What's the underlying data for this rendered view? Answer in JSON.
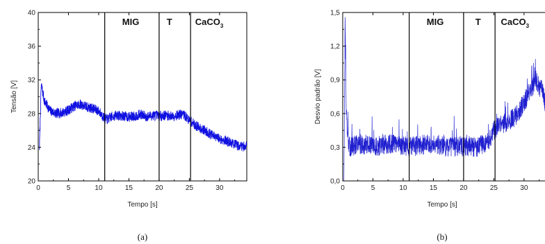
{
  "chart_data": [
    {
      "type": "line",
      "caption": "(a)",
      "xlabel": "Tempo [s]",
      "ylabel": "Tensão [V]",
      "xlim": [
        0,
        34.5
      ],
      "ylim": [
        20,
        40
      ],
      "xticks": [
        0,
        5,
        10,
        15,
        20,
        25,
        30
      ],
      "yticks": [
        20,
        24,
        28,
        32,
        36,
        40
      ],
      "xtick_labels": [
        "0",
        "5",
        "10",
        "15",
        "20",
        "25",
        "30"
      ],
      "ytick_labels": [
        "20",
        "24",
        "28",
        "32",
        "36",
        "40"
      ],
      "grid": false,
      "line_color": "#1010e0",
      "phase_lines": [
        11,
        20,
        25.2
      ],
      "phase_labels": [
        {
          "text": "MIG",
          "x": 15.3,
          "sub": ""
        },
        {
          "text": "T",
          "x": 21.7,
          "sub": ""
        },
        {
          "text": "CaCO",
          "x": 28.3,
          "sub": "3"
        }
      ],
      "series": [
        {
          "x": [
            0.2,
            0.5,
            1,
            2,
            3,
            4,
            5,
            6,
            7,
            8,
            9,
            10,
            11,
            11.5,
            12,
            13,
            14,
            15,
            16,
            17,
            18,
            19,
            20,
            21,
            22,
            23,
            24,
            25,
            26,
            27,
            28,
            29,
            30,
            31,
            32,
            33,
            34,
            34.5
          ],
          "y": [
            24,
            31.5,
            29.5,
            28.3,
            28.0,
            28.1,
            28.4,
            28.9,
            29.1,
            28.8,
            28.6,
            28.3,
            27.4,
            27.3,
            27.6,
            27.8,
            27.7,
            27.6,
            27.7,
            27.9,
            27.6,
            27.8,
            27.7,
            27.8,
            27.7,
            27.8,
            27.9,
            27.2,
            26.6,
            26.2,
            25.8,
            25.3,
            25.0,
            24.8,
            24.5,
            24.2,
            24.1,
            24.3
          ],
          "noise": 0.6
        }
      ]
    },
    {
      "type": "line",
      "caption": "(b)",
      "xlabel": "Tempo [s]",
      "ylabel": "Desvio padrão [V]",
      "xlim": [
        0,
        34.5
      ],
      "ylim": [
        0,
        1.5
      ],
      "xticks": [
        0,
        5,
        10,
        15,
        20,
        25,
        30
      ],
      "yticks": [
        0.0,
        0.3,
        0.6,
        0.9,
        1.2,
        1.5
      ],
      "xtick_labels": [
        "0",
        "5",
        "10",
        "15",
        "20",
        "25",
        "30"
      ],
      "ytick_labels": [
        "0,0",
        "0,3",
        "0,6",
        "0,9",
        "1,2",
        "1,5"
      ],
      "grid": false,
      "line_color": "#2020d0",
      "phase_lines": [
        11,
        20,
        25.2
      ],
      "phase_labels": [
        {
          "text": "MIG",
          "x": 15.3,
          "sub": ""
        },
        {
          "text": "T",
          "x": 22.4,
          "sub": ""
        },
        {
          "text": "CaCO",
          "x": 28.5,
          "sub": "3"
        }
      ],
      "series": [
        {
          "x": [
            0.2,
            0.4,
            0.6,
            1,
            2,
            3,
            4,
            5,
            6,
            7,
            8,
            9,
            10,
            11,
            12,
            13,
            14,
            15,
            16,
            17,
            18,
            19,
            20,
            21,
            22,
            23,
            24,
            25,
            26,
            27,
            28,
            29,
            30,
            31,
            32,
            33,
            34,
            34.5
          ],
          "y": [
            0.05,
            1.45,
            0.6,
            0.3,
            0.32,
            0.33,
            0.32,
            0.3,
            0.31,
            0.33,
            0.33,
            0.32,
            0.31,
            0.3,
            0.31,
            0.32,
            0.33,
            0.34,
            0.32,
            0.31,
            0.3,
            0.31,
            0.3,
            0.31,
            0.3,
            0.32,
            0.34,
            0.45,
            0.5,
            0.52,
            0.55,
            0.6,
            0.7,
            0.8,
            0.9,
            0.8,
            0.6,
            0.5
          ],
          "noise": 0.09
        }
      ]
    }
  ]
}
